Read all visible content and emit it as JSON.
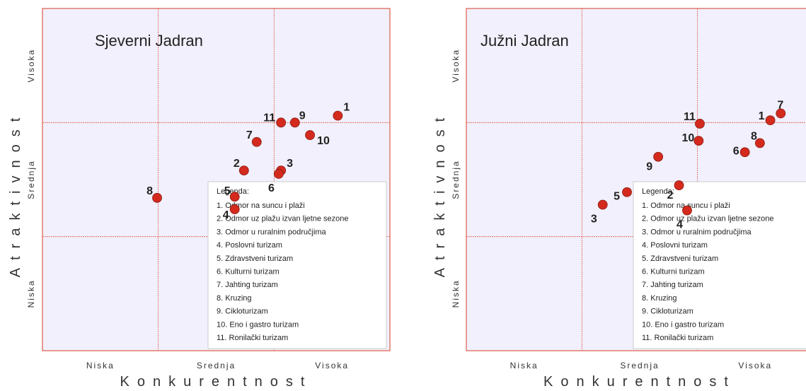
{
  "chart_data": [
    {
      "type": "scatter",
      "title": "Sjeverni Jadran",
      "xlabel": "Konkurentnost",
      "ylabel": "Atraktivnost",
      "x_ticks": [
        "Niska",
        "Srednja",
        "Visoka"
      ],
      "y_ticks": [
        "Niska",
        "Srednja",
        "Visoka"
      ],
      "xlim": [
        0,
        3
      ],
      "ylim": [
        0,
        3
      ],
      "points": [
        {
          "label": "1",
          "x": 2.55,
          "y": 2.06
        },
        {
          "label": "2",
          "x": 1.74,
          "y": 1.58
        },
        {
          "label": "3",
          "x": 2.06,
          "y": 1.58
        },
        {
          "label": "4",
          "x": 1.66,
          "y": 1.24
        },
        {
          "label": "5",
          "x": 1.66,
          "y": 1.35
        },
        {
          "label": "6",
          "x": 2.04,
          "y": 1.55
        },
        {
          "label": "7",
          "x": 1.85,
          "y": 1.83
        },
        {
          "label": "8",
          "x": 0.99,
          "y": 1.34
        },
        {
          "label": "9",
          "x": 2.18,
          "y": 2.0
        },
        {
          "label": "10",
          "x": 2.31,
          "y": 1.89
        },
        {
          "label": "11",
          "x": 2.06,
          "y": 2.0
        }
      ],
      "legend": {
        "title": "Legenda:",
        "items": [
          "1. Odmor na suncu i plaži",
          "2. Odmor uz plažu izvan ljetne sezone",
          "3. Odmor u ruralnim područjima",
          "4. Poslovni turizam",
          "5. Zdravstveni turizam",
          "6. Kulturni turizam",
          "7. Jahting turizam",
          "8. Kruzing",
          "9. Cikloturizam",
          "10. Eno i gastro turizam",
          "11. Ronilački turizam"
        ]
      },
      "colors": {
        "point": "#d42a1e",
        "grid": "#e05a4a",
        "background": "#f1f0fc"
      }
    },
    {
      "type": "scatter",
      "title": "Južni Jadran",
      "xlabel": "Konkurentnost",
      "ylabel": "Atraktivnost",
      "x_ticks": [
        "Niska",
        "Srednja",
        "Visoka"
      ],
      "y_ticks": [
        "Niska",
        "Srednja",
        "Visoka"
      ],
      "xlim": [
        0,
        3
      ],
      "ylim": [
        0,
        3
      ],
      "points": [
        {
          "label": "1",
          "x": 2.63,
          "y": 2.02
        },
        {
          "label": "2",
          "x": 1.84,
          "y": 1.45
        },
        {
          "label": "3",
          "x": 1.18,
          "y": 1.28
        },
        {
          "label": "4",
          "x": 1.91,
          "y": 1.23
        },
        {
          "label": "5",
          "x": 1.39,
          "y": 1.39
        },
        {
          "label": "6",
          "x": 2.41,
          "y": 1.74
        },
        {
          "label": "7",
          "x": 2.72,
          "y": 2.08
        },
        {
          "label": "8",
          "x": 2.54,
          "y": 1.82
        },
        {
          "label": "9",
          "x": 1.66,
          "y": 1.7
        },
        {
          "label": "10",
          "x": 2.01,
          "y": 1.84
        },
        {
          "label": "11",
          "x": 2.02,
          "y": 1.99
        }
      ],
      "legend": {
        "title": "Legenda:",
        "items": [
          "1. Odmor na suncu i plaži",
          "2. Odmor uz plažu izvan ljetne sezone",
          "3. Odmor u ruralnim područjima",
          "4. Poslovni turizam",
          "5. Zdravstveni turizam",
          "6. Kulturni turizam",
          "7. Jahting turizam",
          "8. Kruzing",
          "9. Cikloturizam",
          "10. Eno i gastro turizam",
          "11. Ronilački turizam"
        ]
      },
      "colors": {
        "point": "#d42a1e",
        "grid": "#e05a4a",
        "background": "#f1f0fc"
      }
    }
  ]
}
